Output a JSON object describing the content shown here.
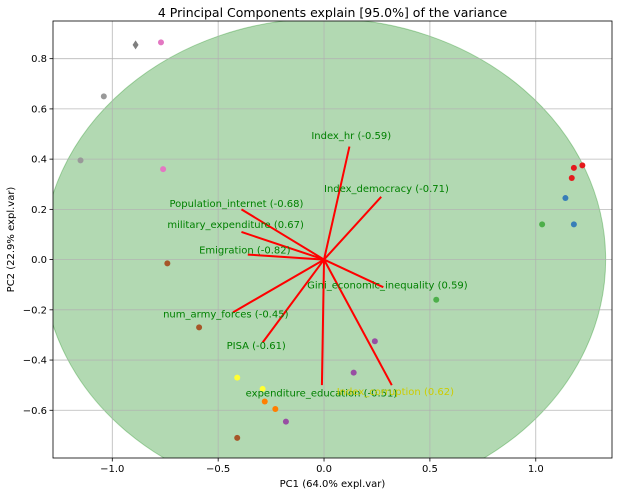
{
  "chart_data": {
    "type": "scatter",
    "title": "4 Principal Components explain [95.0%] of the variance",
    "xlabel": "PC1 (64.0% expl.var)",
    "ylabel": "PC2 (22.9% expl.var)",
    "xlim": [
      -1.28,
      1.36
    ],
    "ylim": [
      -0.79,
      0.95
    ],
    "x_ticks": [
      -1.0,
      -0.5,
      0.0,
      0.5,
      1.0
    ],
    "x_tick_labels": [
      "−1.0",
      "−0.5",
      "0.0",
      "0.5",
      "1.0"
    ],
    "y_ticks": [
      -0.6,
      -0.4,
      -0.2,
      0.0,
      0.2,
      0.4,
      0.6,
      0.8
    ],
    "y_tick_labels": [
      "−0.6",
      "−0.4",
      "−0.2",
      "0.0",
      "0.2",
      "0.4",
      "0.6",
      "0.8"
    ],
    "grid": true,
    "confidence_ellipse": {
      "center": [
        0.0,
        0.0
      ],
      "rx": 1.33,
      "ry": 0.96,
      "color": "#008000",
      "alpha": 0.3
    },
    "loadings_color": "#ff0000",
    "label_color": "#008000",
    "highlight_label_color": "#cccc00",
    "loadings": [
      {
        "label": "Index_hr (-0.59)",
        "x": 0.12,
        "y": 0.45,
        "lx": -0.06,
        "ly": 0.48
      },
      {
        "label": "Index_democracy (-0.71)",
        "x": 0.27,
        "y": 0.25,
        "lx": 0.0,
        "ly": 0.27
      },
      {
        "label": "Population_internet (-0.68)",
        "x": -0.39,
        "y": 0.2,
        "lx": -0.73,
        "ly": 0.21
      },
      {
        "label": "military_expenditure (0.67)",
        "x": -0.39,
        "y": 0.11,
        "lx": -0.74,
        "ly": 0.125
      },
      {
        "label": "Emigration (-0.82)",
        "x": -0.36,
        "y": 0.02,
        "lx": -0.59,
        "ly": 0.025
      },
      {
        "label": "Gini_economic_inequality (0.59)",
        "x": 0.28,
        "y": -0.11,
        "lx": -0.08,
        "ly": -0.115
      },
      {
        "label": "num_army_forces (-0.45)",
        "x": -0.43,
        "y": -0.21,
        "lx": -0.76,
        "ly": -0.23
      },
      {
        "label": "PISA (-0.61)",
        "x": -0.29,
        "y": -0.33,
        "lx": -0.46,
        "ly": -0.355
      },
      {
        "label": "expenditure_education (-0.51)",
        "x": -0.01,
        "y": -0.5,
        "lx": -0.37,
        "ly": -0.545
      },
      {
        "label": "Index_corruption (0.62)",
        "x": 0.32,
        "y": -0.5,
        "lx": 0.06,
        "ly": -0.54,
        "highlight": true
      }
    ],
    "points": [
      {
        "x": -0.77,
        "y": 0.865,
        "color": "#e377c2"
      },
      {
        "x": -0.89,
        "y": 0.855,
        "color": "#7f7f7f",
        "marker": "diamond"
      },
      {
        "x": -1.04,
        "y": 0.65,
        "color": "#999999"
      },
      {
        "x": -1.15,
        "y": 0.395,
        "color": "#999999"
      },
      {
        "x": -0.76,
        "y": 0.36,
        "color": "#e377c2"
      },
      {
        "x": -0.74,
        "y": -0.015,
        "color": "#a65628"
      },
      {
        "x": -0.59,
        "y": -0.27,
        "color": "#a65628"
      },
      {
        "x": -0.41,
        "y": -0.47,
        "color": "#ffff33"
      },
      {
        "x": -0.29,
        "y": -0.515,
        "color": "#ffff33"
      },
      {
        "x": -0.28,
        "y": -0.565,
        "color": "#ff7f00"
      },
      {
        "x": -0.23,
        "y": -0.595,
        "color": "#ff7f00"
      },
      {
        "x": -0.18,
        "y": -0.645,
        "color": "#984ea3"
      },
      {
        "x": -0.41,
        "y": -0.71,
        "color": "#a65628"
      },
      {
        "x": 0.14,
        "y": -0.45,
        "color": "#984ea3"
      },
      {
        "x": 0.24,
        "y": -0.325,
        "color": "#984ea3"
      },
      {
        "x": 0.53,
        "y": -0.16,
        "color": "#4daf4a"
      },
      {
        "x": 1.03,
        "y": 0.14,
        "color": "#4daf4a"
      },
      {
        "x": 1.14,
        "y": 0.245,
        "color": "#377eb8"
      },
      {
        "x": 1.18,
        "y": 0.14,
        "color": "#377eb8"
      },
      {
        "x": 1.17,
        "y": 0.325,
        "color": "#e41a1c"
      },
      {
        "x": 1.18,
        "y": 0.365,
        "color": "#e41a1c"
      },
      {
        "x": 1.22,
        "y": 0.375,
        "color": "#e41a1c"
      }
    ]
  }
}
